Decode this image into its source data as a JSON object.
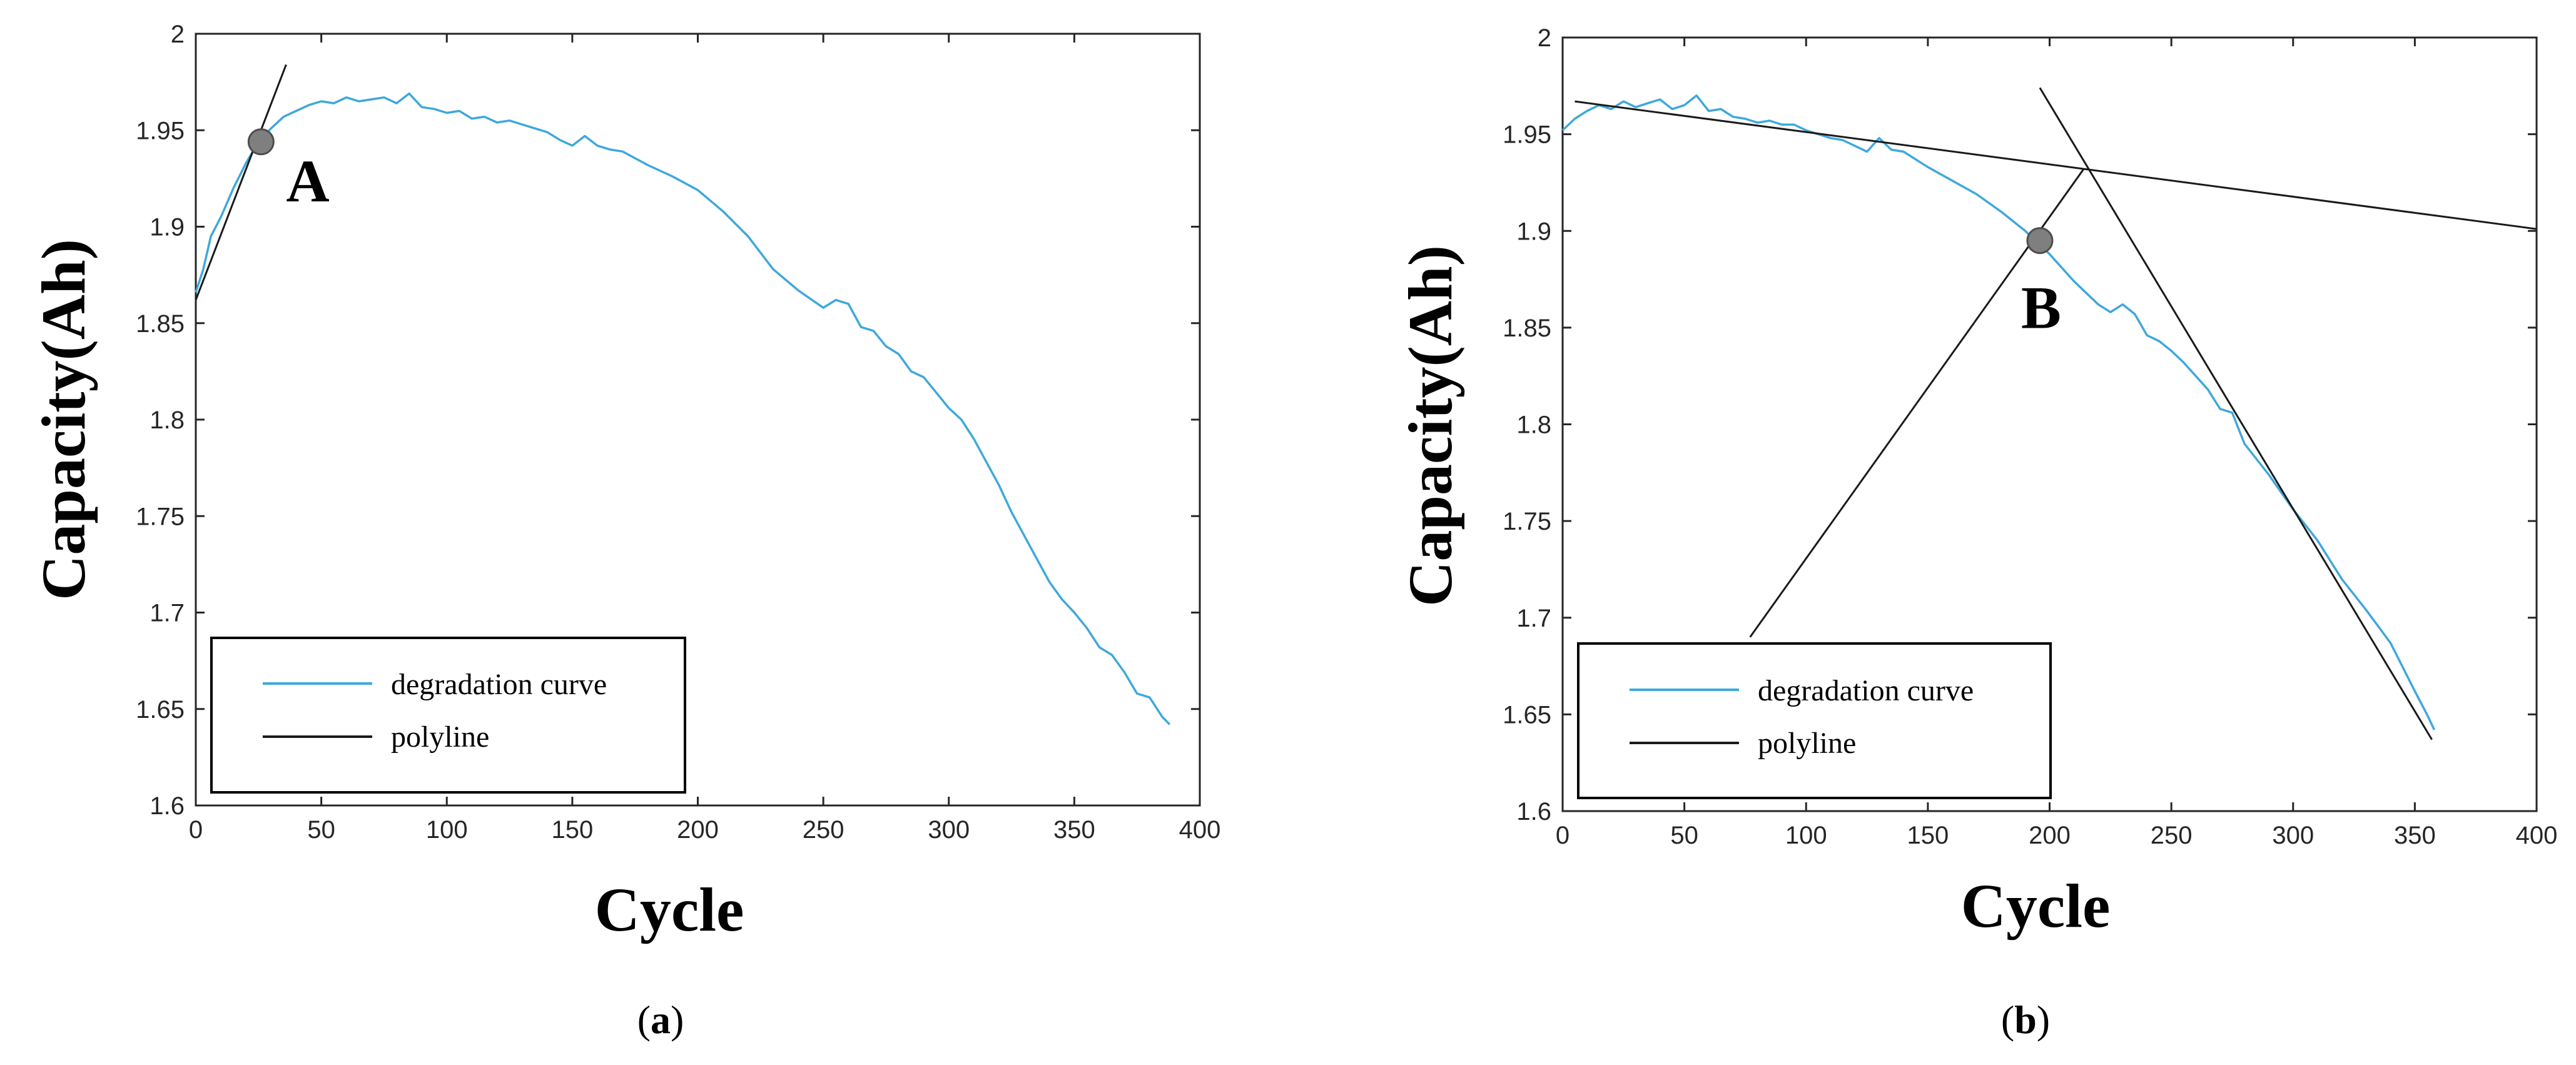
{
  "chart_data": [
    {
      "type": "line",
      "panel": "a",
      "caption_letter": "a",
      "xlabel": "Cycle",
      "ylabel": "Capacity(Ah)",
      "xlim": [
        0,
        400
      ],
      "ylim": [
        1.6,
        2.0
      ],
      "xticks": [
        0,
        50,
        100,
        150,
        200,
        250,
        300,
        350,
        400
      ],
      "yticks": [
        1.6,
        1.65,
        1.7,
        1.75,
        1.8,
        1.85,
        1.9,
        1.95,
        2.0
      ],
      "ytick_labels": [
        "1.6",
        "1.65",
        "1.7",
        "1.75",
        "1.8",
        "1.85",
        "1.9",
        "1.95",
        "2"
      ],
      "grid": false,
      "legend": {
        "position": "bottom-left",
        "entries": [
          "degradation curve",
          "polyline"
        ]
      },
      "series": [
        {
          "name": "degradation curve",
          "color": "#3ea8dc",
          "x": [
            0,
            3,
            6,
            10,
            15,
            20,
            25,
            30,
            35,
            40,
            45,
            50,
            55,
            60,
            65,
            70,
            75,
            80,
            85,
            90,
            95,
            100,
            105,
            110,
            115,
            120,
            125,
            130,
            135,
            140,
            145,
            150,
            155,
            160,
            165,
            170,
            180,
            190,
            200,
            210,
            220,
            230,
            240,
            250,
            255,
            260,
            265,
            270,
            275,
            280,
            285,
            290,
            295,
            300,
            305,
            310,
            315,
            320,
            325,
            330,
            335,
            340,
            345,
            350,
            355,
            360,
            365,
            370,
            375,
            380,
            385,
            388
          ],
          "y": [
            1.866,
            1.878,
            1.895,
            1.905,
            1.92,
            1.933,
            1.944,
            1.951,
            1.957,
            1.96,
            1.963,
            1.965,
            1.964,
            1.967,
            1.965,
            1.966,
            1.967,
            1.964,
            1.969,
            1.962,
            1.961,
            1.959,
            1.96,
            1.956,
            1.957,
            1.954,
            1.955,
            1.953,
            1.951,
            1.949,
            1.945,
            1.942,
            1.947,
            1.942,
            1.94,
            1.939,
            1.932,
            1.926,
            1.919,
            1.908,
            1.895,
            1.878,
            1.867,
            1.858,
            1.862,
            1.86,
            1.848,
            1.846,
            1.838,
            1.834,
            1.825,
            1.822,
            1.814,
            1.806,
            1.8,
            1.79,
            1.778,
            1.766,
            1.752,
            1.74,
            1.728,
            1.716,
            1.707,
            1.7,
            1.692,
            1.682,
            1.678,
            1.669,
            1.658,
            1.656,
            1.646,
            1.642
          ]
        },
        {
          "name": "polyline",
          "color": "#1a1a1a",
          "x": [
            0,
            36
          ],
          "y": [
            1.862,
            1.984
          ]
        }
      ],
      "annotations": [
        {
          "label": "A",
          "x": 26,
          "y": 1.944
        }
      ]
    },
    {
      "type": "line",
      "panel": "b",
      "caption_letter": "b",
      "xlabel": "Cycle",
      "ylabel": "Capacity(Ah)",
      "xlim": [
        0,
        400
      ],
      "ylim": [
        1.6,
        2.0
      ],
      "xticks": [
        0,
        50,
        100,
        150,
        200,
        250,
        300,
        350,
        400
      ],
      "yticks": [
        1.6,
        1.65,
        1.7,
        1.75,
        1.8,
        1.85,
        1.9,
        1.95,
        2.0
      ],
      "ytick_labels": [
        "1.6",
        "1.65",
        "1.7",
        "1.75",
        "1.8",
        "1.85",
        "1.9",
        "1.95",
        "2"
      ],
      "grid": false,
      "legend": {
        "position": "bottom-left",
        "entries": [
          "degradation curve",
          "polyline"
        ]
      },
      "series": [
        {
          "name": "degradation curve",
          "color": "#3ea8dc",
          "x": [
            0,
            5,
            10,
            15,
            20,
            25,
            30,
            35,
            40,
            45,
            50,
            55,
            60,
            65,
            70,
            75,
            80,
            85,
            90,
            95,
            100,
            105,
            110,
            115,
            120,
            125,
            130,
            135,
            140,
            150,
            160,
            170,
            180,
            190,
            200,
            210,
            220,
            225,
            230,
            235,
            240,
            245,
            250,
            255,
            260,
            265,
            270,
            275,
            280,
            290,
            300,
            310,
            320,
            330,
            340,
            350,
            355,
            358
          ],
          "y": [
            1.952,
            1.958,
            1.962,
            1.965,
            1.963,
            1.967,
            1.964,
            1.966,
            1.968,
            1.963,
            1.965,
            1.97,
            1.962,
            1.963,
            1.959,
            1.958,
            1.956,
            1.957,
            1.955,
            1.955,
            1.952,
            1.95,
            1.948,
            1.947,
            1.944,
            1.941,
            1.948,
            1.942,
            1.941,
            1.933,
            1.926,
            1.919,
            1.91,
            1.9,
            1.888,
            1.874,
            1.862,
            1.858,
            1.862,
            1.857,
            1.846,
            1.843,
            1.838,
            1.832,
            1.825,
            1.818,
            1.808,
            1.806,
            1.79,
            1.774,
            1.756,
            1.74,
            1.72,
            1.704,
            1.687,
            1.662,
            1.65,
            1.642
          ]
        },
        {
          "name": "polyline",
          "color": "#1a1a1a",
          "x": [
            5,
            400
          ],
          "y": [
            1.967,
            1.901
          ]
        },
        {
          "name": "polyline",
          "color": "#1a1a1a",
          "x": [
            77,
            214
          ],
          "y": [
            1.69,
            1.932
          ]
        },
        {
          "name": "polyline",
          "color": "#1a1a1a",
          "x": [
            196,
            357
          ],
          "y": [
            1.974,
            1.637
          ]
        }
      ],
      "annotations": [
        {
          "label": "B",
          "x": 196,
          "y": 1.895
        }
      ]
    }
  ]
}
